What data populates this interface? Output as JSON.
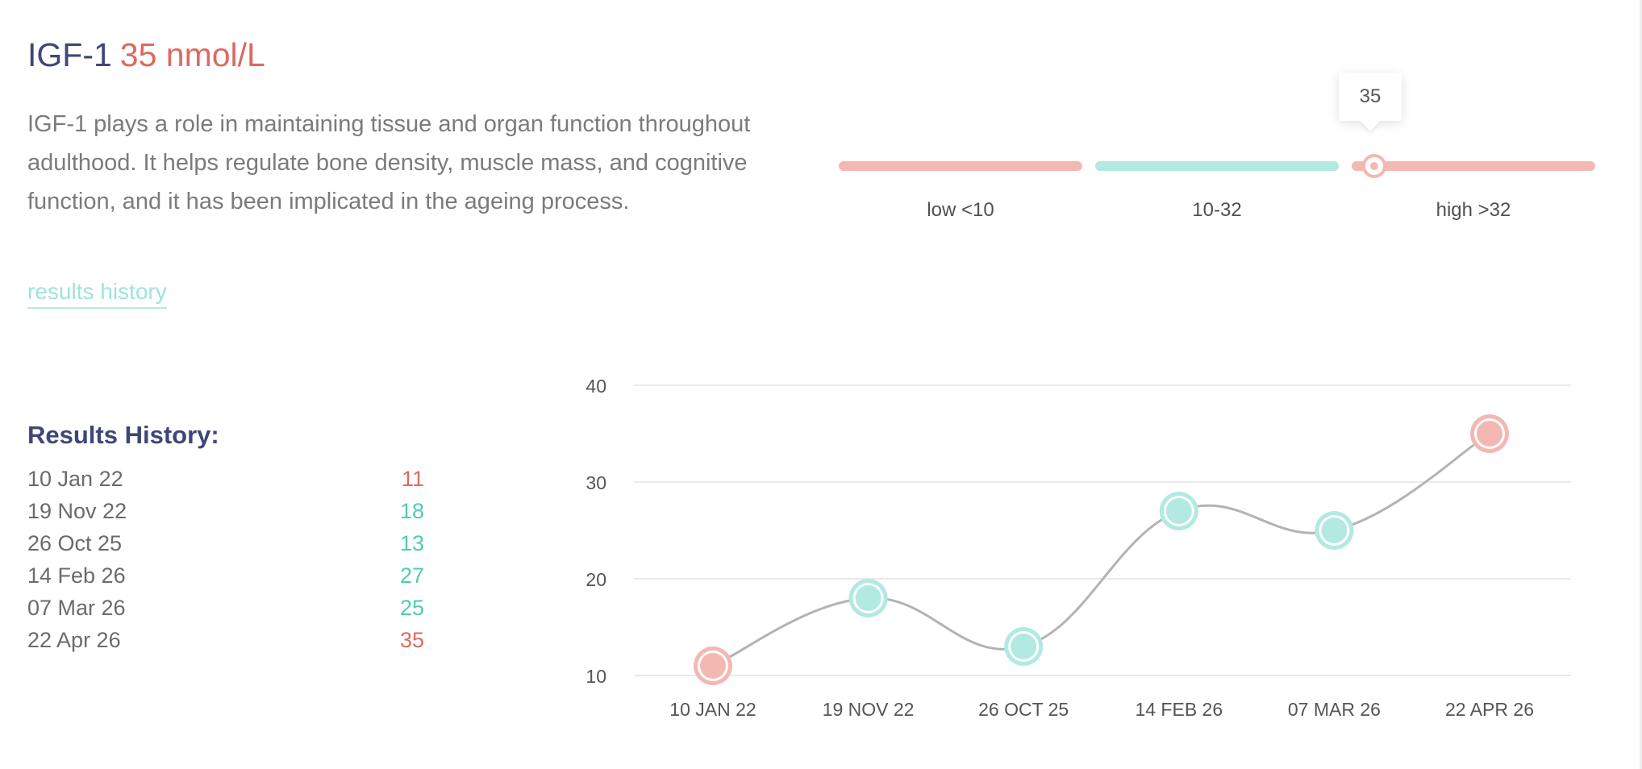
{
  "header": {
    "marker_name": "IGF-1",
    "current_value": "35 nmol/L"
  },
  "description": "IGF-1 plays a role in maintaining tissue and organ function throughout adulthood. It helps regulate bone density, muscle mass, and cognitive function, and it has been implicated in the ageing process.",
  "results_link": "results history",
  "range_bar": {
    "current": 35,
    "tooltip": "35",
    "segments": [
      {
        "label": "low <10",
        "color": "#f4b8b3"
      },
      {
        "label": "10-32",
        "color": "#b2e9e1"
      },
      {
        "label": "high >32",
        "color": "#f4b8b3"
      }
    ]
  },
  "history": {
    "title": "Results History:",
    "rows": [
      {
        "date": "10 Jan 22",
        "value": "11",
        "color": "#dc6a60"
      },
      {
        "date": "19 Nov 22",
        "value": "18",
        "color": "#4ecdb0"
      },
      {
        "date": "26 Oct 25",
        "value": "13",
        "color": "#4ecdb0"
      },
      {
        "date": "14 Feb 26",
        "value": "27",
        "color": "#4ecdb0"
      },
      {
        "date": "07 Mar 26",
        "value": "25",
        "color": "#4ecdb0"
      },
      {
        "date": "22 Apr 26",
        "value": "35",
        "color": "#dc6a60"
      }
    ]
  },
  "chart_data": {
    "type": "line",
    "categories": [
      "10 JAN 22",
      "19 NOV 22",
      "26 OCT 25",
      "14 FEB 26",
      "07 MAR 26",
      "22 APR 26"
    ],
    "values": [
      11,
      18,
      13,
      27,
      25,
      35
    ],
    "point_status": [
      "out",
      "in",
      "in",
      "in",
      "in",
      "out"
    ],
    "yticks": [
      10,
      20,
      30,
      40
    ],
    "ylim": [
      10,
      40
    ],
    "grid": true,
    "line_color": "#b3b3b3",
    "in_range_color": "#b2e9e1",
    "out_range_color": "#f4b8b3"
  }
}
